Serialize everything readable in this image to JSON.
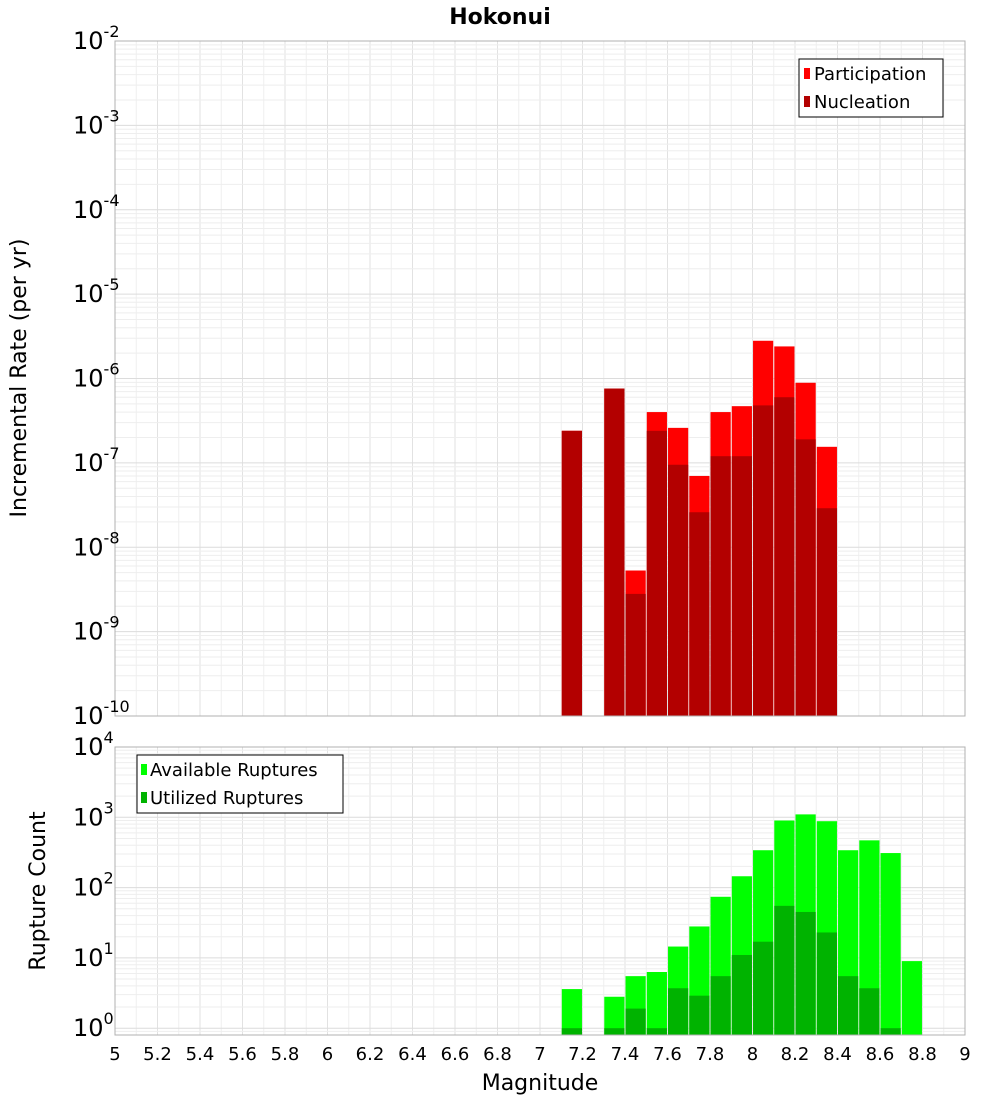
{
  "chart_data": [
    {
      "type": "bar",
      "title": "Hokonui",
      "xlabel": "",
      "ylabel": "Incremental Rate (per yr)",
      "yscale": "log",
      "ylim": [
        1e-10,
        0.01
      ],
      "xlim": [
        5,
        9
      ],
      "y_tick_exponents": [
        "-10",
        "-9",
        "-8",
        "-7",
        "-6",
        "-5",
        "-4",
        "-3",
        "-2"
      ],
      "grid": true,
      "legend_position": "top-right",
      "series": [
        {
          "name": "Participation",
          "color": "#ff0000",
          "points": [
            [
              7.15,
              2.4e-07
            ],
            [
              7.35,
              7.6e-07
            ],
            [
              7.45,
              5.3e-09
            ],
            [
              7.55,
              4e-07
            ],
            [
              7.65,
              2.6e-07
            ],
            [
              7.75,
              7e-08
            ],
            [
              7.85,
              4e-07
            ],
            [
              7.95,
              4.7e-07
            ],
            [
              8.05,
              2.8e-06
            ],
            [
              8.15,
              2.4e-06
            ],
            [
              8.25,
              8.9e-07
            ],
            [
              8.35,
              1.55e-07
            ]
          ]
        },
        {
          "name": "Nucleation",
          "color": "#b30000",
          "points": [
            [
              7.15,
              2.4e-07
            ],
            [
              7.35,
              7.6e-07
            ],
            [
              7.45,
              2.8e-09
            ],
            [
              7.55,
              2.4e-07
            ],
            [
              7.65,
              9.5e-08
            ],
            [
              7.75,
              2.6e-08
            ],
            [
              7.85,
              1.2e-07
            ],
            [
              7.95,
              1.2e-07
            ],
            [
              8.05,
              4.8e-07
            ],
            [
              8.15,
              6e-07
            ],
            [
              8.25,
              1.9e-07
            ],
            [
              8.35,
              2.9e-08
            ]
          ]
        }
      ]
    },
    {
      "type": "bar",
      "title": "",
      "xlabel": "Magnitude",
      "ylabel": "Rupture Count",
      "yscale": "log",
      "ylim": [
        0.8,
        10000
      ],
      "xlim": [
        5,
        9
      ],
      "y_tick_exponents": [
        "0",
        "1",
        "2",
        "3",
        "4"
      ],
      "x_tick_labels": [
        "5",
        "5.2",
        "5.4",
        "5.6",
        "5.8",
        "6",
        "6.2",
        "6.4",
        "6.6",
        "6.8",
        "7",
        "7.2",
        "7.4",
        "7.6",
        "7.8",
        "8",
        "8.2",
        "8.4",
        "8.6",
        "8.8",
        "9"
      ],
      "grid": true,
      "legend_position": "top-left",
      "series": [
        {
          "name": "Available Ruptures",
          "color": "#00ff00",
          "points": [
            [
              7.15,
              3.6
            ],
            [
              7.35,
              2.8
            ],
            [
              7.45,
              5.5
            ],
            [
              7.55,
              6.3
            ],
            [
              7.65,
              14.5
            ],
            [
              7.75,
              28
            ],
            [
              7.85,
              74
            ],
            [
              7.95,
              145
            ],
            [
              8.05,
              340
            ],
            [
              8.15,
              900
            ],
            [
              8.25,
              1100
            ],
            [
              8.35,
              880
            ],
            [
              8.45,
              340
            ],
            [
              8.55,
              470
            ],
            [
              8.65,
              310
            ],
            [
              8.75,
              9
            ]
          ]
        },
        {
          "name": "Utilized Ruptures",
          "color": "#00b300",
          "points": [
            [
              7.15,
              1
            ],
            [
              7.35,
              1
            ],
            [
              7.45,
              1.9
            ],
            [
              7.55,
              1
            ],
            [
              7.65,
              3.7
            ],
            [
              7.75,
              2.9
            ],
            [
              7.85,
              5.5
            ],
            [
              7.95,
              11
            ],
            [
              8.05,
              17
            ],
            [
              8.15,
              55
            ],
            [
              8.25,
              45
            ],
            [
              8.35,
              23
            ],
            [
              8.45,
              5.5
            ],
            [
              8.55,
              3.7
            ],
            [
              8.65,
              1
            ]
          ]
        }
      ]
    }
  ]
}
